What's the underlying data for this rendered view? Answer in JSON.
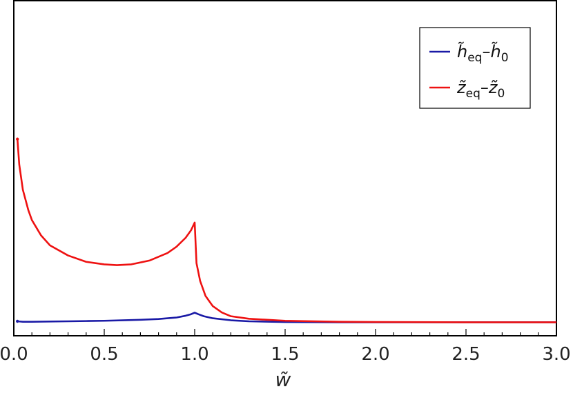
{
  "chart_data": {
    "type": "line",
    "title": "",
    "xlabel": "w̃",
    "ylabel": "",
    "xlim": [
      0.0,
      3.0
    ],
    "ylim": [
      0.0,
      1.0
    ],
    "y_ticks_labeled": false,
    "grid": false,
    "legend_placement": "top-right",
    "x_ticks": [
      {
        "value": 0.0,
        "label": "0.0"
      },
      {
        "value": 0.5,
        "label": "0.5"
      },
      {
        "value": 1.0,
        "label": "1.0"
      },
      {
        "value": 1.5,
        "label": "1.5"
      },
      {
        "value": 2.0,
        "label": "2.0"
      },
      {
        "value": 2.5,
        "label": "2.5"
      },
      {
        "value": 3.0,
        "label": "3.0"
      }
    ],
    "series": [
      {
        "name": "h̃eq–h̃0",
        "legend": {
          "base": "h̃",
          "sub": "eq",
          "sep": "–",
          "base2": "h̃",
          "sub2": "0"
        },
        "color": "#1a1aa6",
        "x": [
          0.02,
          0.05,
          0.1,
          0.2,
          0.3,
          0.4,
          0.5,
          0.6,
          0.7,
          0.8,
          0.9,
          0.95,
          0.98,
          1.0,
          1.02,
          1.05,
          1.1,
          1.2,
          1.3,
          1.5,
          1.8,
          2.0,
          2.5,
          3.0
        ],
        "y": [
          0.03,
          0.028,
          0.028,
          0.029,
          0.03,
          0.031,
          0.032,
          0.034,
          0.036,
          0.039,
          0.045,
          0.052,
          0.058,
          0.064,
          0.058,
          0.05,
          0.042,
          0.034,
          0.03,
          0.027,
          0.026,
          0.026,
          0.026,
          0.026
        ]
      },
      {
        "name": "z̃eq–z̃0",
        "legend": {
          "base": "z̃",
          "sub": "eq",
          "sep": "–",
          "base2": "z̃",
          "sub2": "0"
        },
        "color": "#ee1111",
        "x": [
          0.02,
          0.03,
          0.05,
          0.08,
          0.1,
          0.15,
          0.2,
          0.3,
          0.4,
          0.5,
          0.57,
          0.65,
          0.75,
          0.85,
          0.9,
          0.95,
          0.98,
          1.0,
          1.01,
          1.03,
          1.06,
          1.1,
          1.15,
          1.2,
          1.3,
          1.5,
          1.8,
          2.0,
          2.5,
          3.0
        ],
        "y": [
          0.75,
          0.65,
          0.55,
          0.47,
          0.43,
          0.37,
          0.33,
          0.29,
          0.265,
          0.255,
          0.252,
          0.255,
          0.27,
          0.3,
          0.325,
          0.36,
          0.39,
          0.42,
          0.26,
          0.19,
          0.13,
          0.09,
          0.065,
          0.05,
          0.04,
          0.032,
          0.028,
          0.027,
          0.026,
          0.026
        ]
      }
    ]
  }
}
